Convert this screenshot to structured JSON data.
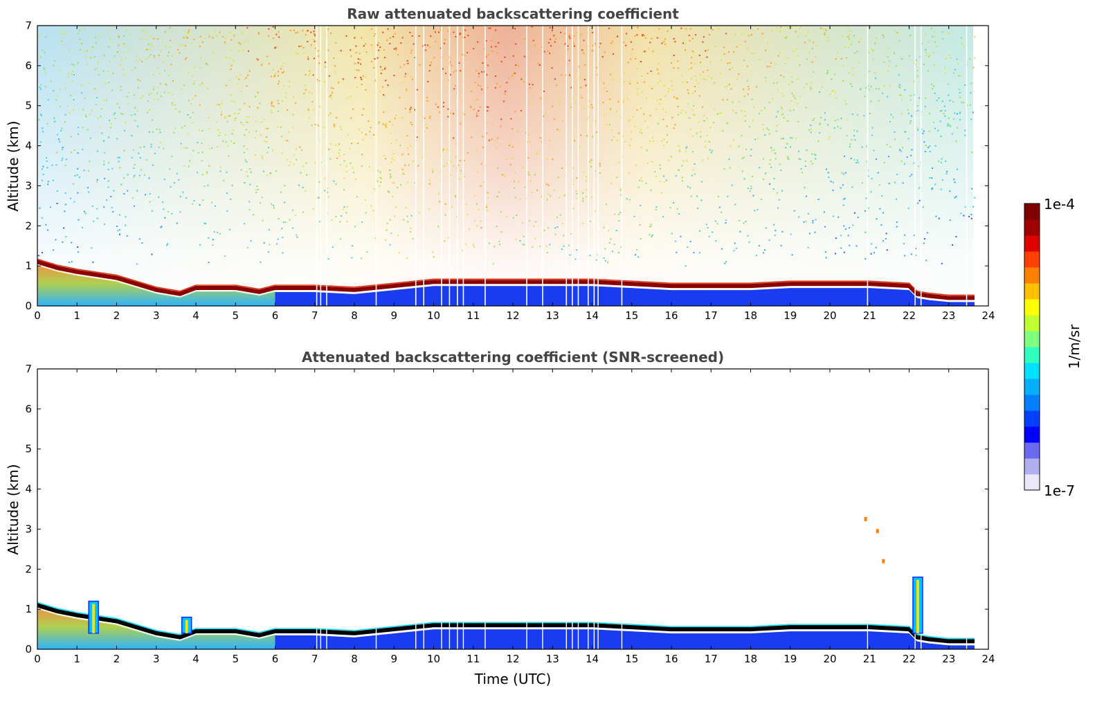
{
  "chart_data": [
    {
      "type": "heatmap",
      "id": "raw",
      "title": "Raw attenuated backscattering coefficient",
      "xlabel": "",
      "ylabel": "Altitude (km)",
      "xlim": [
        0,
        24
      ],
      "ylim": [
        0,
        7
      ],
      "xticks": [
        "0",
        "1",
        "2",
        "3",
        "4",
        "5",
        "6",
        "7",
        "8",
        "9",
        "10",
        "11",
        "12",
        "13",
        "14",
        "15",
        "16",
        "17",
        "18",
        "19",
        "20",
        "21",
        "22",
        "23",
        "24"
      ],
      "yticks": [
        "0",
        "1",
        "2",
        "3",
        "4",
        "5",
        "6",
        "7"
      ],
      "data_end_hour": 23.65,
      "layer_top_km": [
        [
          0,
          1.1
        ],
        [
          0.5,
          0.95
        ],
        [
          1,
          0.85
        ],
        [
          2,
          0.7
        ],
        [
          3,
          0.4
        ],
        [
          3.6,
          0.3
        ],
        [
          4,
          0.45
        ],
        [
          5,
          0.45
        ],
        [
          5.6,
          0.35
        ],
        [
          6,
          0.45
        ],
        [
          7,
          0.45
        ],
        [
          8,
          0.4
        ],
        [
          9,
          0.5
        ],
        [
          10,
          0.6
        ],
        [
          11,
          0.6
        ],
        [
          12,
          0.6
        ],
        [
          13,
          0.6
        ],
        [
          14,
          0.6
        ],
        [
          15,
          0.55
        ],
        [
          16,
          0.5
        ],
        [
          17,
          0.5
        ],
        [
          18,
          0.5
        ],
        [
          19,
          0.55
        ],
        [
          20,
          0.55
        ],
        [
          21,
          0.55
        ],
        [
          22,
          0.5
        ],
        [
          22.2,
          0.3
        ],
        [
          22.5,
          0.25
        ],
        [
          23,
          0.2
        ],
        [
          23.65,
          0.2
        ]
      ],
      "spike_hours": [
        7.05,
        7.15,
        7.3,
        8.55,
        9.55,
        9.75,
        10.2,
        10.4,
        10.6,
        10.75,
        11.3,
        12.35,
        12.75,
        13.35,
        13.5,
        13.65,
        13.9,
        14.05,
        14.15,
        14.75,
        20.95,
        22.15,
        22.3,
        23.45
      ]
    },
    {
      "type": "heatmap",
      "id": "screened",
      "title": "Attenuated backscattering coefficient (SNR-screened)",
      "xlabel": "Time (UTC)",
      "ylabel": "Altitude (km)",
      "xlim": [
        0,
        24
      ],
      "ylim": [
        0,
        7
      ],
      "xticks": [
        "0",
        "1",
        "2",
        "3",
        "4",
        "5",
        "6",
        "7",
        "8",
        "9",
        "10",
        "11",
        "12",
        "13",
        "14",
        "15",
        "16",
        "17",
        "18",
        "19",
        "20",
        "21",
        "22",
        "23",
        "24"
      ],
      "yticks": [
        "0",
        "1",
        "2",
        "3",
        "4",
        "5",
        "6",
        "7"
      ],
      "data_end_hour": 23.65,
      "layer_top_km": [
        [
          0,
          1.1
        ],
        [
          0.5,
          0.95
        ],
        [
          1,
          0.85
        ],
        [
          2,
          0.7
        ],
        [
          3,
          0.4
        ],
        [
          3.6,
          0.3
        ],
        [
          4,
          0.45
        ],
        [
          5,
          0.45
        ],
        [
          5.6,
          0.35
        ],
        [
          6,
          0.45
        ],
        [
          7,
          0.45
        ],
        [
          8,
          0.4
        ],
        [
          9,
          0.5
        ],
        [
          10,
          0.6
        ],
        [
          11,
          0.6
        ],
        [
          12,
          0.6
        ],
        [
          13,
          0.6
        ],
        [
          14,
          0.6
        ],
        [
          15,
          0.55
        ],
        [
          16,
          0.5
        ],
        [
          17,
          0.5
        ],
        [
          18,
          0.5
        ],
        [
          19,
          0.55
        ],
        [
          20,
          0.55
        ],
        [
          21,
          0.55
        ],
        [
          22,
          0.5
        ],
        [
          22.2,
          0.3
        ],
        [
          22.5,
          0.25
        ],
        [
          23,
          0.2
        ],
        [
          23.65,
          0.2
        ]
      ],
      "cloud_features": [
        [
          1.4,
          1.2
        ],
        [
          3.75,
          0.8
        ],
        [
          22.2,
          1.8
        ]
      ],
      "speckles": [
        [
          20.9,
          3.25
        ],
        [
          21.35,
          2.2
        ],
        [
          21.2,
          2.95
        ]
      ]
    }
  ],
  "colorbar": {
    "label": "1/m/sr",
    "max_label": "1e-4",
    "min_label": "1e-7",
    "colors": [
      "#e8e8f8",
      "#b0b0f0",
      "#6a6af0",
      "#0000ff",
      "#0040ff",
      "#0080ff",
      "#00b0ff",
      "#00e0ff",
      "#30ffc0",
      "#80ff80",
      "#c0ff30",
      "#ffff00",
      "#ffc000",
      "#ff8000",
      "#ff4000",
      "#e00000",
      "#a00000",
      "#800000"
    ]
  }
}
